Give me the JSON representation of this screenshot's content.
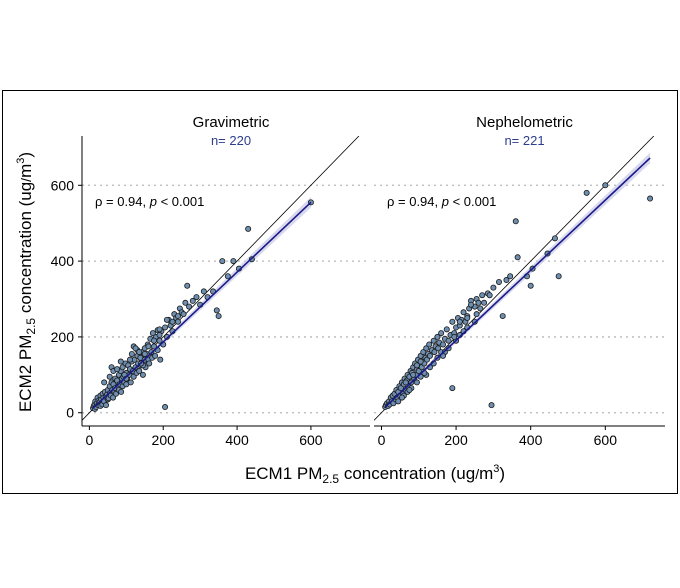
{
  "chart_data": {
    "type": "scatter",
    "xlabel_main": "ECM1 PM",
    "xlabel_sub": "2.5",
    "xlabel_rest": " concentration (ug",
    "xlabel_unit_num": "m",
    "xlabel_unit_exp": "3",
    "xlabel_close": ")",
    "ylabel_main": "ECM2 PM",
    "ylabel_sub": "2.5",
    "ylabel_rest": " concentration (ug",
    "ylabel_unit_num": "m",
    "ylabel_unit_exp": "3",
    "ylabel_close": ")",
    "xlim": [
      -20,
      760
    ],
    "ylim": [
      -35,
      730
    ],
    "xticks": [
      "0",
      "200",
      "400",
      "600"
    ],
    "yticks": [
      "0",
      "200",
      "400",
      "600"
    ],
    "xtick_values": [
      0,
      200,
      400,
      600
    ],
    "ytick_values": [
      0,
      200,
      400,
      600
    ],
    "grid": "horizontal dotted",
    "colors": {
      "point_fill": "#6f8fb0",
      "fit_line": "#1a1a8c",
      "ci_band": "#c9c9e6",
      "n_text": "#2d3e8c"
    },
    "panels": [
      {
        "title": "Gravimetric",
        "n_label": "n= 220",
        "stat_rho": "ρ = 0.94, ",
        "stat_p": "p",
        "stat_rest": " < 0.001",
        "fit": {
          "x": [
            10,
            600
          ],
          "y": [
            12,
            555
          ]
        },
        "points": [
          [
            10,
            12
          ],
          [
            12,
            18
          ],
          [
            14,
            22
          ],
          [
            15,
            10
          ],
          [
            16,
            30
          ],
          [
            18,
            15
          ],
          [
            20,
            25
          ],
          [
            22,
            40
          ],
          [
            24,
            20
          ],
          [
            25,
            32
          ],
          [
            28,
            28
          ],
          [
            30,
            45
          ],
          [
            30,
            18
          ],
          [
            32,
            35
          ],
          [
            35,
            22
          ],
          [
            36,
            50
          ],
          [
            38,
            40
          ],
          [
            40,
            30
          ],
          [
            42,
            55
          ],
          [
            44,
            42
          ],
          [
            45,
            20
          ],
          [
            48,
            48
          ],
          [
            50,
            60
          ],
          [
            50,
            35
          ],
          [
            52,
            38
          ],
          [
            55,
            70
          ],
          [
            56,
            52
          ],
          [
            58,
            45
          ],
          [
            60,
            80
          ],
          [
            62,
            60
          ],
          [
            64,
            40
          ],
          [
            65,
            75
          ],
          [
            68,
            55
          ],
          [
            70,
            90
          ],
          [
            70,
            65
          ],
          [
            72,
            50
          ],
          [
            75,
            85
          ],
          [
            78,
            70
          ],
          [
            80,
            100
          ],
          [
            80,
            60
          ],
          [
            82,
            75
          ],
          [
            85,
            110
          ],
          [
            86,
            55
          ],
          [
            88,
            90
          ],
          [
            90,
            120
          ],
          [
            90,
            70
          ],
          [
            92,
            95
          ],
          [
            95,
            80
          ],
          [
            98,
            130
          ],
          [
            100,
            105
          ],
          [
            100,
            75
          ],
          [
            102,
            90
          ],
          [
            105,
            125
          ],
          [
            108,
            100
          ],
          [
            110,
            115
          ],
          [
            112,
            80
          ],
          [
            115,
            135
          ],
          [
            118,
            110
          ],
          [
            120,
            95
          ],
          [
            122,
            140
          ],
          [
            125,
            120
          ],
          [
            128,
            105
          ],
          [
            130,
            150
          ],
          [
            132,
            130
          ],
          [
            135,
            110
          ],
          [
            138,
            145
          ],
          [
            140,
            125
          ],
          [
            142,
            160
          ],
          [
            145,
            100
          ],
          [
            148,
            135
          ],
          [
            150,
            170
          ],
          [
            150,
            140
          ],
          [
            152,
            120
          ],
          [
            155,
            155
          ],
          [
            158,
            180
          ],
          [
            160,
            140
          ],
          [
            162,
            130
          ],
          [
            165,
            195
          ],
          [
            168,
            160
          ],
          [
            170,
            145
          ],
          [
            175,
            175
          ],
          [
            178,
            150
          ],
          [
            180,
            200
          ],
          [
            185,
            165
          ],
          [
            190,
            190
          ],
          [
            192,
            140
          ],
          [
            195,
            215
          ],
          [
            200,
            180
          ],
          [
            205,
            225
          ],
          [
            210,
            200
          ],
          [
            215,
            245
          ],
          [
            220,
            230
          ],
          [
            225,
            215
          ],
          [
            230,
            260
          ],
          [
            235,
            250
          ],
          [
            240,
            240
          ],
          [
            245,
            275
          ],
          [
            250,
            265
          ],
          [
            260,
            290
          ],
          [
            265,
            335
          ],
          [
            270,
            280
          ],
          [
            280,
            295
          ],
          [
            290,
            305
          ],
          [
            300,
            285
          ],
          [
            310,
            320
          ],
          [
            320,
            305
          ],
          [
            335,
            320
          ],
          [
            345,
            270
          ],
          [
            350,
            255
          ],
          [
            360,
            400
          ],
          [
            375,
            360
          ],
          [
            390,
            400
          ],
          [
            405,
            380
          ],
          [
            430,
            485
          ],
          [
            440,
            405
          ],
          [
            205,
            15
          ],
          [
            60,
            120
          ],
          [
            120,
            175
          ],
          [
            130,
            165
          ],
          [
            150,
            155
          ],
          [
            172,
            210
          ],
          [
            185,
            218
          ],
          [
            145,
            125
          ],
          [
            140,
            130
          ],
          [
            190,
            205
          ],
          [
            40,
            80
          ],
          [
            55,
            95
          ],
          [
            65,
            110
          ],
          [
            75,
            115
          ],
          [
            85,
            135
          ],
          [
            95,
            100
          ],
          [
            100,
            90
          ],
          [
            110,
            140
          ],
          [
            115,
            155
          ],
          [
            125,
            170
          ],
          [
            135,
            160
          ],
          [
            160,
            175
          ],
          [
            175,
            190
          ],
          [
            190,
            220
          ],
          [
            210,
            245
          ],
          [
            225,
            240
          ],
          [
            240,
            255
          ],
          [
            255,
            260
          ],
          [
            600,
            555
          ]
        ]
      },
      {
        "title": "Nephelometric",
        "n_label": "n= 221",
        "stat_rho": "ρ = 0.94, ",
        "stat_p": "p",
        "stat_rest": " < 0.001",
        "fit": {
          "x": [
            10,
            720
          ],
          "y": [
            15,
            672
          ]
        },
        "points": [
          [
            10,
            15
          ],
          [
            12,
            20
          ],
          [
            15,
            25
          ],
          [
            18,
            18
          ],
          [
            20,
            30
          ],
          [
            22,
            22
          ],
          [
            25,
            40
          ],
          [
            28,
            30
          ],
          [
            30,
            45
          ],
          [
            32,
            25
          ],
          [
            35,
            50
          ],
          [
            38,
            35
          ],
          [
            40,
            60
          ],
          [
            42,
            40
          ],
          [
            45,
            55
          ],
          [
            48,
            70
          ],
          [
            50,
            45
          ],
          [
            52,
            65
          ],
          [
            55,
            80
          ],
          [
            58,
            50
          ],
          [
            60,
            75
          ],
          [
            62,
            90
          ],
          [
            65,
            60
          ],
          [
            68,
            85
          ],
          [
            70,
            100
          ],
          [
            72,
            70
          ],
          [
            75,
            95
          ],
          [
            78,
            110
          ],
          [
            80,
            80
          ],
          [
            82,
            105
          ],
          [
            85,
            120
          ],
          [
            88,
            90
          ],
          [
            90,
            130
          ],
          [
            92,
            100
          ],
          [
            95,
            115
          ],
          [
            98,
            140
          ],
          [
            100,
            110
          ],
          [
            102,
            125
          ],
          [
            105,
            150
          ],
          [
            108,
            120
          ],
          [
            110,
            135
          ],
          [
            112,
            160
          ],
          [
            115,
            130
          ],
          [
            118,
            145
          ],
          [
            120,
            170
          ],
          [
            122,
            140
          ],
          [
            125,
            155
          ],
          [
            128,
            180
          ],
          [
            130,
            150
          ],
          [
            135,
            165
          ],
          [
            140,
            190
          ],
          [
            142,
            160
          ],
          [
            145,
            175
          ],
          [
            150,
            200
          ],
          [
            152,
            170
          ],
          [
            155,
            185
          ],
          [
            160,
            210
          ],
          [
            165,
            180
          ],
          [
            170,
            195
          ],
          [
            175,
            220
          ],
          [
            180,
            190
          ],
          [
            185,
            205
          ],
          [
            190,
            240
          ],
          [
            195,
            210
          ],
          [
            200,
            225
          ],
          [
            205,
            250
          ],
          [
            210,
            230
          ],
          [
            215,
            245
          ],
          [
            220,
            265
          ],
          [
            225,
            240
          ],
          [
            230,
            255
          ],
          [
            235,
            275
          ],
          [
            240,
            295
          ],
          [
            250,
            280
          ],
          [
            255,
            300
          ],
          [
            260,
            290
          ],
          [
            270,
            310
          ],
          [
            275,
            290
          ],
          [
            285,
            315
          ],
          [
            290,
            310
          ],
          [
            295,
            20
          ],
          [
            300,
            330
          ],
          [
            315,
            345
          ],
          [
            325,
            255
          ],
          [
            335,
            350
          ],
          [
            345,
            360
          ],
          [
            360,
            505
          ],
          [
            365,
            410
          ],
          [
            390,
            360
          ],
          [
            400,
            335
          ],
          [
            405,
            380
          ],
          [
            445,
            420
          ],
          [
            465,
            460
          ],
          [
            475,
            360
          ],
          [
            550,
            580
          ],
          [
            600,
            600
          ],
          [
            720,
            565
          ],
          [
            120,
            100
          ],
          [
            130,
            120
          ],
          [
            140,
            130
          ],
          [
            160,
            160
          ],
          [
            170,
            160
          ],
          [
            180,
            170
          ],
          [
            190,
            65
          ],
          [
            200,
            190
          ],
          [
            210,
            205
          ],
          [
            220,
            215
          ],
          [
            230,
            225
          ],
          [
            150,
            145
          ],
          [
            165,
            150
          ],
          [
            95,
            80
          ],
          [
            105,
            95
          ],
          [
            115,
            105
          ],
          [
            60,
            45
          ],
          [
            70,
            55
          ],
          [
            80,
            65
          ],
          [
            85,
            100
          ],
          [
            95,
            125
          ],
          [
            105,
            135
          ],
          [
            45,
            30
          ],
          [
            55,
            40
          ],
          [
            65,
            80
          ],
          [
            75,
            60
          ],
          [
            240,
            285
          ],
          [
            255,
            260
          ],
          [
            265,
            275
          ],
          [
            250,
            240
          ],
          [
            230,
            250
          ],
          [
            210,
            240
          ],
          [
            195,
            200
          ]
        ]
      }
    ]
  }
}
